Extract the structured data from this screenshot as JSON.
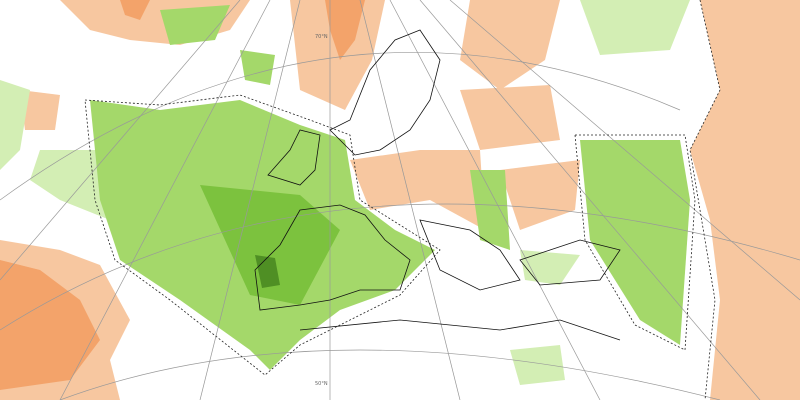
{
  "map": {
    "graticule_labels": [
      "70°N",
      "50°N"
    ]
  }
}
